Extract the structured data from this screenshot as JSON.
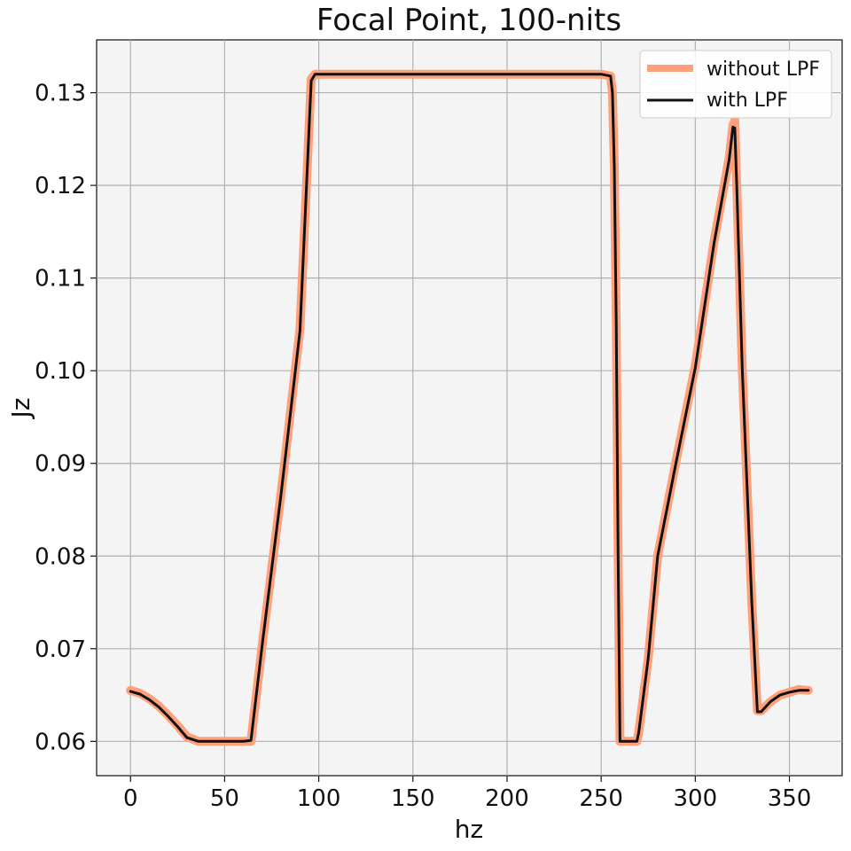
{
  "chart_data": {
    "type": "line",
    "title": "Focal Point,  100-nits",
    "xlabel": "hz",
    "ylabel": "Jz",
    "xlim": [
      -18,
      378
    ],
    "ylim": [
      0.0563,
      0.1357
    ],
    "xticks": [
      0,
      50,
      100,
      150,
      200,
      250,
      300,
      350
    ],
    "yticks": [
      0.06,
      0.07,
      0.08,
      0.09,
      0.1,
      0.11,
      0.12,
      0.13
    ],
    "ytick_labels": [
      "0.06",
      "0.07",
      "0.08",
      "0.09",
      "0.10",
      "0.11",
      "0.12",
      "0.13"
    ],
    "grid": true,
    "legend_position": "top-right",
    "background": "#f4f4f4",
    "series": [
      {
        "name": "without LPF",
        "color": "#ffa07a",
        "x": [
          0,
          5,
          10,
          15,
          20,
          25,
          30,
          36,
          40,
          50,
          60,
          64,
          70,
          80,
          90,
          96,
          98,
          150,
          200,
          250,
          255,
          256,
          257,
          258,
          259,
          260,
          265,
          269,
          270,
          275,
          280,
          290,
          300,
          310,
          318,
          320,
          321,
          322,
          325,
          330,
          333,
          335,
          340,
          345,
          350,
          355,
          360
        ],
        "y": [
          0.0655,
          0.0652,
          0.0646,
          0.0638,
          0.0628,
          0.0617,
          0.0605,
          0.06,
          0.06,
          0.06,
          0.06,
          0.06,
          0.0705,
          0.0868,
          0.1045,
          0.1315,
          0.132,
          0.132,
          0.132,
          0.132,
          0.1318,
          0.13,
          0.122,
          0.105,
          0.08,
          0.06,
          0.06,
          0.06,
          0.061,
          0.069,
          0.08,
          0.0905,
          0.1005,
          0.114,
          0.123,
          0.1265,
          0.127,
          0.12,
          0.1,
          0.075,
          0.0633,
          0.0633,
          0.0643,
          0.065,
          0.0653,
          0.0656,
          0.0655
        ]
      },
      {
        "name": "with LPF",
        "color": "#111111",
        "x": [
          0,
          5,
          10,
          15,
          20,
          25,
          30,
          36,
          40,
          50,
          60,
          64,
          70,
          80,
          90,
          96,
          98,
          150,
          200,
          250,
          255,
          256,
          257,
          258,
          259,
          260,
          265,
          269,
          270,
          275,
          280,
          290,
          300,
          310,
          318,
          320,
          321,
          322,
          325,
          330,
          333,
          335,
          340,
          345,
          350,
          355,
          360
        ],
        "y": [
          0.0654,
          0.0651,
          0.0645,
          0.0637,
          0.0627,
          0.0616,
          0.0604,
          0.06,
          0.06,
          0.06,
          0.06,
          0.0601,
          0.0705,
          0.0867,
          0.1043,
          0.1313,
          0.132,
          0.132,
          0.132,
          0.132,
          0.1318,
          0.13,
          0.122,
          0.105,
          0.08,
          0.06,
          0.06,
          0.06,
          0.061,
          0.069,
          0.08,
          0.0903,
          0.1003,
          0.1138,
          0.1228,
          0.1263,
          0.1262,
          0.12,
          0.1,
          0.075,
          0.0632,
          0.0632,
          0.0643,
          0.065,
          0.0653,
          0.0655,
          0.0655
        ]
      }
    ]
  }
}
